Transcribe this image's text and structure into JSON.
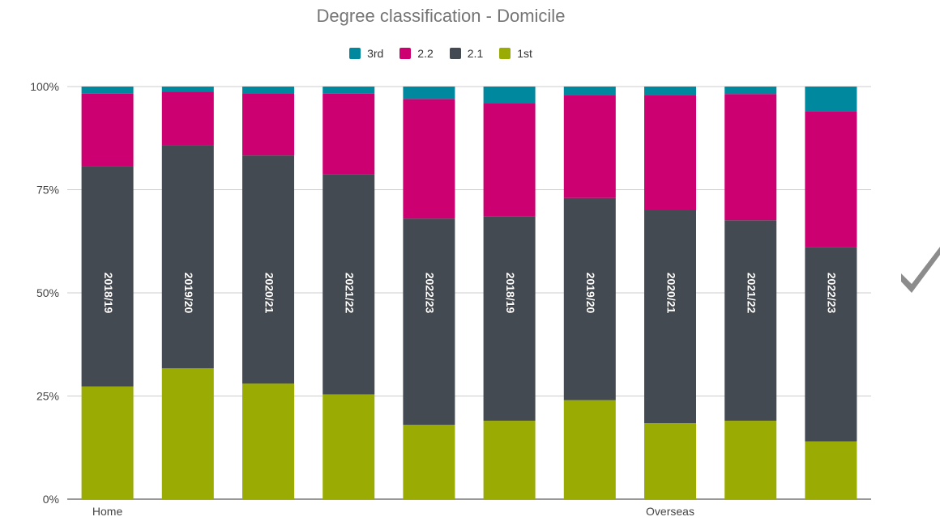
{
  "chart_data": {
    "type": "bar",
    "stacked": true,
    "title": "Degree classification - Domicile",
    "legend_position": "top",
    "ylim": [
      0,
      1
    ],
    "yticks": [
      {
        "value": 0,
        "label": "0%"
      },
      {
        "value": 0.25,
        "label": "25%"
      },
      {
        "value": 0.5,
        "label": "50%"
      },
      {
        "value": 0.75,
        "label": "75%"
      },
      {
        "value": 1.0,
        "label": "100%"
      }
    ],
    "grid": true,
    "categories": [
      "2018/19",
      "2019/20",
      "2020/21",
      "2021/22",
      "2022/23",
      "2018/19",
      "2019/20",
      "2020/21",
      "2021/22",
      "2022/23"
    ],
    "groups": [
      {
        "label": "Home",
        "start": 0,
        "end": 4
      },
      {
        "label": "Overseas",
        "start": 5,
        "end": 9
      }
    ],
    "series": [
      {
        "name": "1st",
        "color": "#9aab04",
        "values": [
          0.273,
          0.317,
          0.28,
          0.254,
          0.18,
          0.19,
          0.24,
          0.184,
          0.19,
          0.14
        ]
      },
      {
        "name": "2.1",
        "color": "#434a52",
        "values": [
          0.533,
          0.54,
          0.553,
          0.534,
          0.5,
          0.495,
          0.49,
          0.516,
          0.486,
          0.47
        ]
      },
      {
        "name": "2.2",
        "color": "#cc0070",
        "values": [
          0.177,
          0.131,
          0.151,
          0.195,
          0.29,
          0.275,
          0.25,
          0.28,
          0.306,
          0.33
        ]
      },
      {
        "name": "3rd",
        "color": "#00889e",
        "values": [
          0.017,
          0.012,
          0.016,
          0.017,
          0.03,
          0.04,
          0.02,
          0.02,
          0.018,
          0.06
        ]
      }
    ],
    "legend_order": [
      "3rd",
      "2.2",
      "2.1",
      "1st"
    ]
  },
  "decor": {
    "checkmark_icon": "checkmark-icon",
    "checkmark_color": "#8c8c8c"
  }
}
